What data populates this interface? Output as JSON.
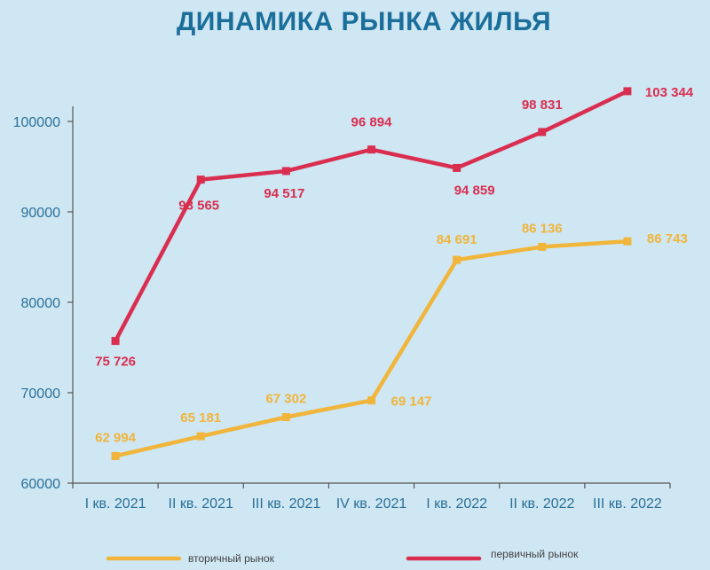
{
  "page": {
    "title": "ДИНАМИКА РЫНКА ЖИЛЬЯ"
  },
  "chart_data": {
    "type": "line",
    "title": "ДИНАМИКА РЫНКА ЖИЛЬЯ",
    "xlabel": "",
    "ylabel": "",
    "categories": [
      "I кв. 2021",
      "II кв. 2021",
      "III кв. 2021",
      "IV кв. 2021",
      "I кв. 2022",
      "II кв. 2022",
      "III кв. 2022"
    ],
    "ylim": [
      60000,
      100000
    ],
    "yticks": [
      "60000",
      "70000",
      "80000",
      "90000",
      "100000"
    ],
    "grid": false,
    "legend_position": "bottom",
    "series": [
      {
        "name": "первичный рынок",
        "color": "#d92e4f",
        "values": [
          75726,
          93565,
          94517,
          96894,
          94859,
          98831,
          103344
        ],
        "labels": [
          "75 726",
          "93 565",
          "94 517",
          "96 894",
          "94 859",
          "98 831",
          "103 344"
        ]
      },
      {
        "name": "вторичный рынок",
        "color": "#f0b53a",
        "values": [
          62994,
          65181,
          67302,
          69147,
          84691,
          86136,
          86743
        ],
        "labels": [
          "62 994",
          "65 181",
          "67 302",
          "69 147",
          "84 691",
          "86 136",
          "86 743"
        ]
      }
    ],
    "axis_color": "#555555",
    "tick_color": "#2a7198"
  }
}
